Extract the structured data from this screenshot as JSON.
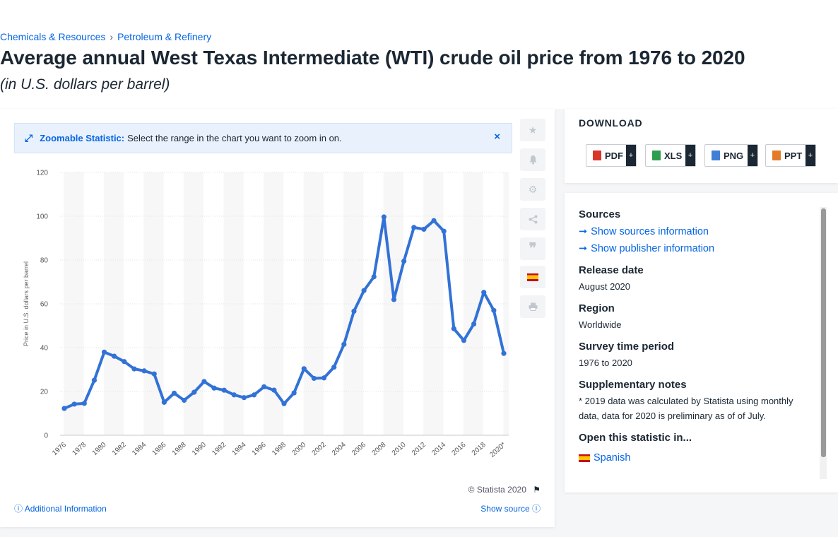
{
  "breadcrumb": {
    "items": [
      "Chemicals & Resources",
      "Petroleum & Refinery"
    ],
    "separator": "›"
  },
  "title": "Average annual West Texas Intermediate (WTI) crude oil price from 1976 to 2020",
  "subtitle": "(in U.S. dollars per barrel)",
  "zoom_banner": {
    "strong": "Zoomable Statistic:",
    "text": "Select the range in the chart you want to zoom in on.",
    "close": "×"
  },
  "toolbar": {
    "icons": [
      "star-icon",
      "bell-icon",
      "gear-icon",
      "share-icon",
      "quote-icon",
      "spanish-flag-icon",
      "print-icon"
    ]
  },
  "footer": {
    "copyright": "© Statista 2020",
    "additional_info": "Additional Information",
    "show_source": "Show source"
  },
  "download": {
    "title": "DOWNLOAD",
    "buttons": [
      {
        "label": "PDF",
        "color": "#d9352a"
      },
      {
        "label": "XLS",
        "color": "#2e9e4f"
      },
      {
        "label": "PNG",
        "color": "#3f7fd6"
      },
      {
        "label": "PPT",
        "color": "#e37b2a"
      }
    ],
    "plus": "+"
  },
  "info": {
    "sources_head": "Sources",
    "show_sources": "Show sources information",
    "show_publisher": "Show publisher information",
    "release_head": "Release date",
    "release_val": "August 2020",
    "region_head": "Region",
    "region_val": "Worldwide",
    "survey_head": "Survey time period",
    "survey_val": "1976 to 2020",
    "notes_head": "Supplementary notes",
    "notes_val": "* 2019 data was calculated by Statista using monthly data, data for 2020 is preliminary as of of July.",
    "open_head": "Open this statistic in...",
    "open_lang": "Spanish"
  },
  "chart_data": {
    "type": "line",
    "title": "Average annual West Texas Intermediate (WTI) crude oil price from 1976 to 2020",
    "ylabel": "Price in U.S. dollars per barrel",
    "xlabel": "",
    "ylim": [
      0,
      120
    ],
    "yticks": [
      0,
      20,
      40,
      60,
      80,
      100,
      120
    ],
    "grid": true,
    "color": "#3272d6",
    "x_tick_labels": [
      "1976",
      "1978",
      "1980",
      "1982",
      "1984",
      "1986",
      "1988",
      "1990",
      "1992",
      "1994",
      "1996",
      "1998",
      "2000",
      "2002",
      "2004",
      "2006",
      "2008",
      "2010",
      "2012",
      "2014",
      "2016",
      "2018",
      "2020*"
    ],
    "x": [
      "1976",
      "1977",
      "1978",
      "1979",
      "1980",
      "1981",
      "1982",
      "1983",
      "1984",
      "1985",
      "1986",
      "1987",
      "1988",
      "1989",
      "1990",
      "1991",
      "1992",
      "1993",
      "1994",
      "1995",
      "1996",
      "1997",
      "1998",
      "1999",
      "2000",
      "2001",
      "2002",
      "2003",
      "2004",
      "2005",
      "2006",
      "2007",
      "2008",
      "2009",
      "2010",
      "2011",
      "2012",
      "2013",
      "2014",
      "2015",
      "2016",
      "2017",
      "2018",
      "2019",
      "2020"
    ],
    "values": [
      12.23,
      14.22,
      14.55,
      25.1,
      37.96,
      36.08,
      33.65,
      30.3,
      29.39,
      27.99,
      15.05,
      19.2,
      15.97,
      19.64,
      24.53,
      21.54,
      20.58,
      18.43,
      17.2,
      18.43,
      22.12,
      20.61,
      14.42,
      19.34,
      30.38,
      25.98,
      26.18,
      31.08,
      41.51,
      56.64,
      66.05,
      72.34,
      99.67,
      61.95,
      79.48,
      94.88,
      94.05,
      97.98,
      93.17,
      48.66,
      43.29,
      50.8,
      65.23,
      56.99,
      37.36
    ]
  }
}
